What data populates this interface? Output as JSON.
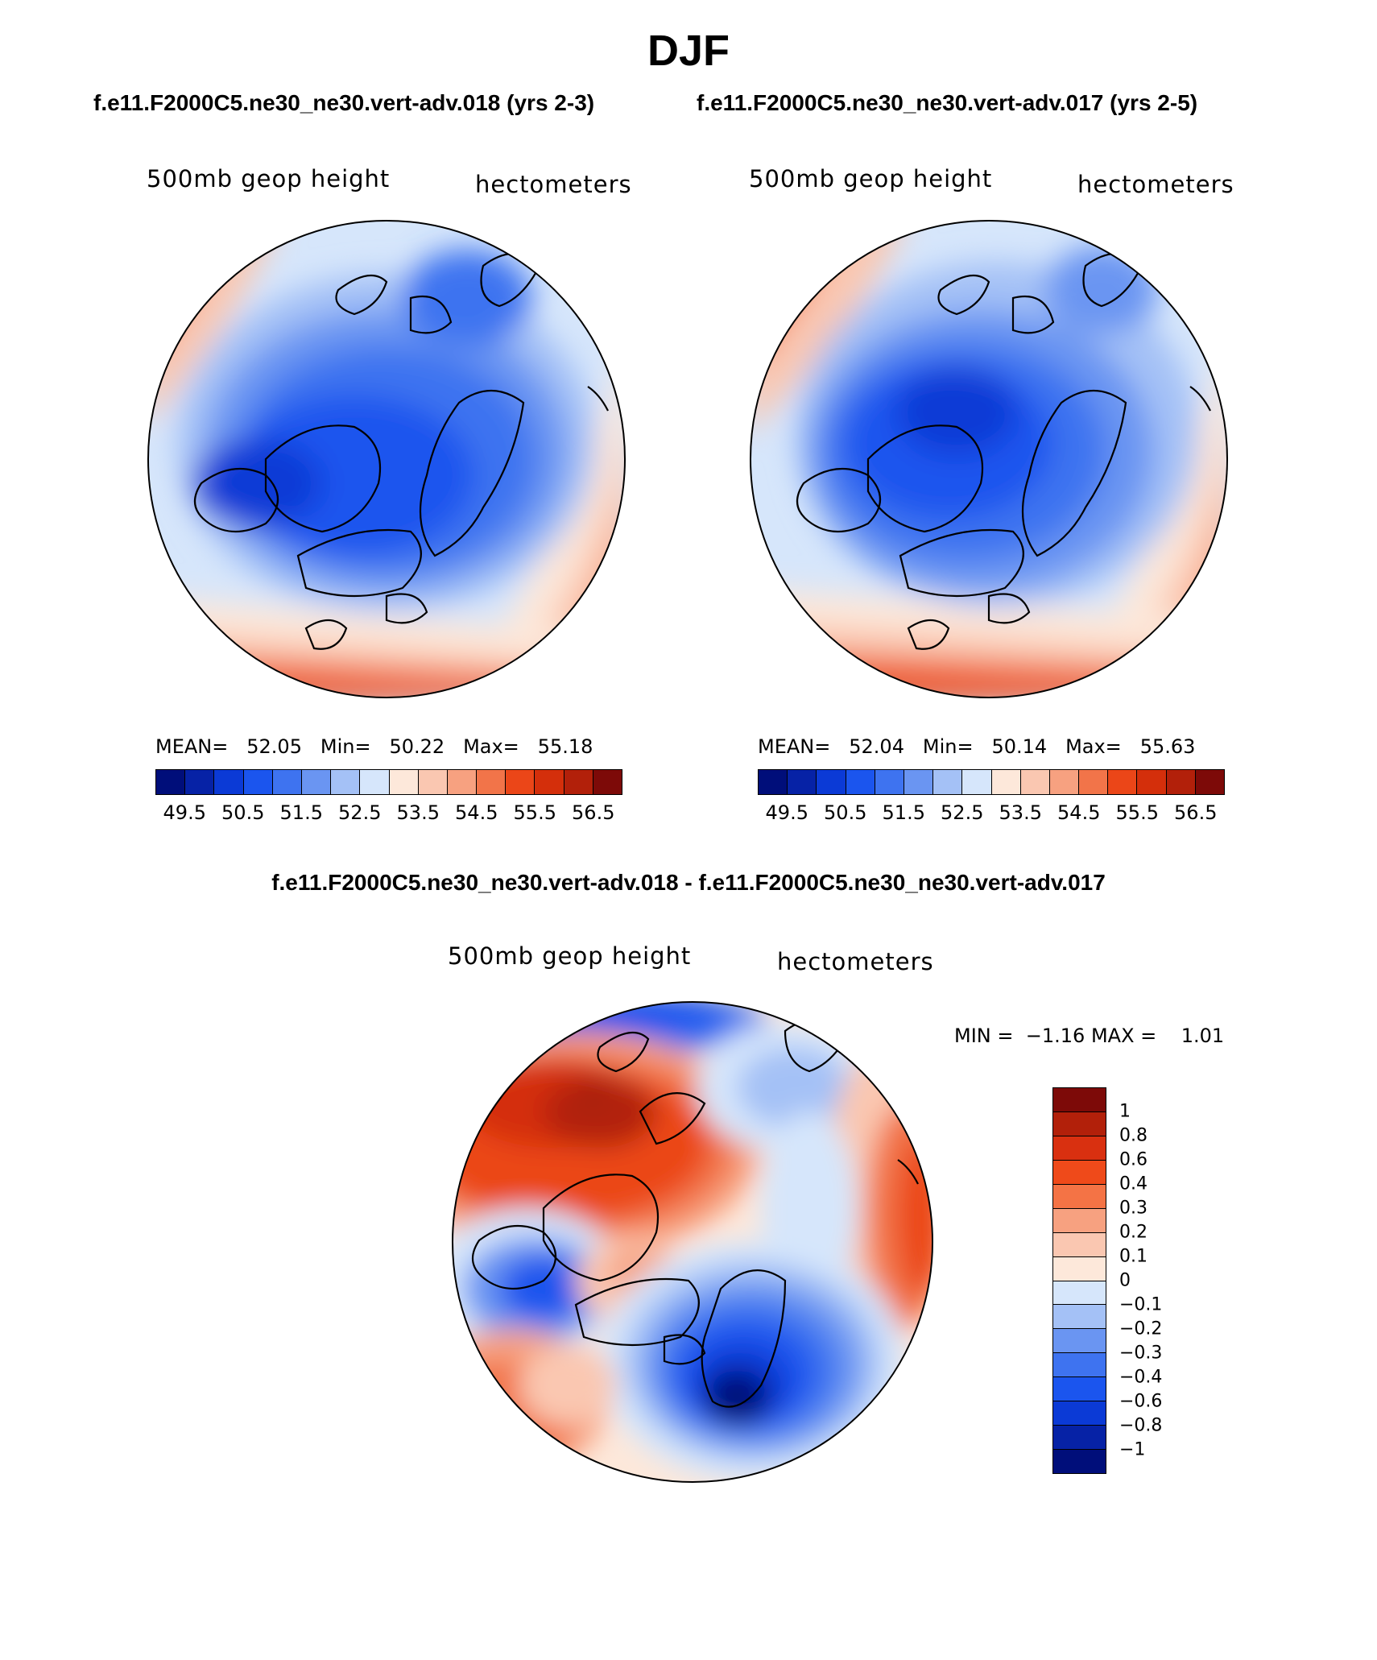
{
  "title": "DJF",
  "subtitle_left": "f.e11.F2000C5.ne30_ne30.vert-adv.018 (yrs 2-3)",
  "subtitle_right": "f.e11.F2000C5.ne30_ne30.vert-adv.017 (yrs 2-5)",
  "diff_title": "f.e11.F2000C5.ne30_ne30.vert-adv.018 - f.e11.F2000C5.ne30_ne30.vert-adv.017",
  "panels": [
    {
      "variable": "500mb geop height",
      "units": "hectometers",
      "mean_label": "MEAN=",
      "mean": "52.05",
      "min_label": "Min=",
      "min": "50.22",
      "max_label": "Max=",
      "max": "55.18"
    },
    {
      "variable": "500mb geop height",
      "units": "hectometers",
      "mean_label": "MEAN=",
      "mean": "52.04",
      "min_label": "Min=",
      "min": "50.14",
      "max_label": "Max=",
      "max": "55.63"
    }
  ],
  "diff_panel": {
    "variable": "500mb geop height",
    "units": "hectometers",
    "min_label": "MIN =",
    "min": "−1.16",
    "max_label": "MAX =",
    "max": "1.01"
  },
  "abs_colorbar": {
    "colors": [
      "#000e7a",
      "#0622a6",
      "#0b3ad6",
      "#1b55ee",
      "#3e73f0",
      "#6a95f2",
      "#a4c1f6",
      "#d6e6fb",
      "#fde8da",
      "#fac7b1",
      "#f7a180",
      "#f27449",
      "#eb4618",
      "#d42f0b",
      "#b2200a",
      "#7d0a08"
    ],
    "tick_labels": [
      "49.5",
      "50.5",
      "51.5",
      "52.5",
      "53.5",
      "54.5",
      "55.5",
      "56.5"
    ]
  },
  "diff_colorbar": {
    "colors": [
      "#7d0a08",
      "#b2200a",
      "#d93010",
      "#ef4a1a",
      "#f47345",
      "#f7a180",
      "#fac7b1",
      "#fde8da",
      "#d6e6fb",
      "#a4c1f6",
      "#6a95f2",
      "#3e73f0",
      "#1b55ee",
      "#0b3ad6",
      "#0622a6",
      "#000e7a"
    ],
    "tick_labels": [
      "1",
      "0.8",
      "0.6",
      "0.4",
      "0.3",
      "0.2",
      "0.1",
      "0",
      "−0.1",
      "−0.2",
      "−0.3",
      "−0.4",
      "−0.6",
      "−0.8",
      "−1"
    ]
  }
}
